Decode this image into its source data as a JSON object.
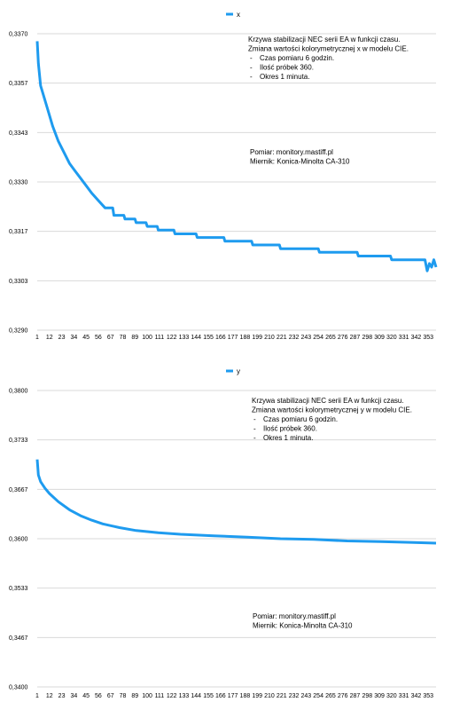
{
  "chart_data": [
    {
      "type": "line",
      "series": [
        {
          "name": "x",
          "color": "#1e9bef"
        }
      ],
      "ylim": [
        0.329,
        0.337
      ],
      "yticks": [
        "0,3370",
        "0,3357",
        "0,3343",
        "0,3330",
        "0,3317",
        "0,3303",
        "0,3290"
      ],
      "xticks": [
        "1",
        "12",
        "23",
        "34",
        "45",
        "56",
        "67",
        "78",
        "89",
        "100",
        "111",
        "122",
        "133",
        "144",
        "155",
        "166",
        "177",
        "188",
        "199",
        "210",
        "221",
        "232",
        "243",
        "254",
        "265",
        "276",
        "287",
        "298",
        "309",
        "320",
        "331",
        "342",
        "353"
      ],
      "xlim": [
        1,
        360
      ],
      "points": [
        [
          1,
          0.3368
        ],
        [
          2,
          0.3362
        ],
        [
          4,
          0.3356
        ],
        [
          6,
          0.3354
        ],
        [
          10,
          0.335
        ],
        [
          15,
          0.3345
        ],
        [
          20,
          0.3341
        ],
        [
          25,
          0.3338
        ],
        [
          30,
          0.3335
        ],
        [
          35,
          0.3333
        ],
        [
          40,
          0.3331
        ],
        [
          45,
          0.3329
        ],
        [
          50,
          0.3327
        ],
        [
          56,
          0.3325
        ],
        [
          62,
          0.3323
        ],
        [
          70,
          0.3321
        ],
        [
          80,
          0.332
        ],
        [
          90,
          0.3319
        ],
        [
          100,
          0.3318
        ],
        [
          110,
          0.3317
        ],
        [
          125,
          0.3316
        ],
        [
          145,
          0.3315
        ],
        [
          170,
          0.3314
        ],
        [
          195,
          0.3313
        ],
        [
          220,
          0.3312
        ],
        [
          255,
          0.3311
        ],
        [
          290,
          0.331
        ],
        [
          320,
          0.3309
        ],
        [
          350,
          0.3309
        ],
        [
          352,
          0.3306
        ],
        [
          354,
          0.3308
        ],
        [
          356,
          0.3307
        ],
        [
          358,
          0.3309
        ],
        [
          360,
          0.3307
        ]
      ],
      "annotation": {
        "lines": [
          "Krzywa stabilizacji NEC serii EA w funkcji czasu.",
          "Zmiana wartości kolorymetrycznej x w modelu CIE."
        ],
        "bullets": [
          "Czas pomiaru 6 godzin.",
          "Ilość próbek 360.",
          "Okres 1 minuta."
        ]
      },
      "source": [
        "Pomiar: monitory.mastiff.pl",
        "Miernik: Konica-Minolta CA-310"
      ]
    },
    {
      "type": "line",
      "series": [
        {
          "name": "y",
          "color": "#1e9bef"
        }
      ],
      "ylim": [
        0.34,
        0.38
      ],
      "yticks": [
        "0,3800",
        "0,3733",
        "0,3667",
        "0,3600",
        "0,3533",
        "0,3467",
        "0,3400"
      ],
      "xticks": [
        "1",
        "12",
        "23",
        "34",
        "45",
        "56",
        "67",
        "78",
        "89",
        "100",
        "111",
        "122",
        "133",
        "144",
        "155",
        "166",
        "177",
        "188",
        "199",
        "210",
        "221",
        "232",
        "243",
        "254",
        "265",
        "276",
        "287",
        "298",
        "309",
        "320",
        "331",
        "342",
        "353"
      ],
      "xlim": [
        1,
        360
      ],
      "points": [
        [
          1,
          0.3707
        ],
        [
          2,
          0.3686
        ],
        [
          4,
          0.3677
        ],
        [
          8,
          0.3668
        ],
        [
          12,
          0.3661
        ],
        [
          20,
          0.365
        ],
        [
          30,
          0.3639
        ],
        [
          40,
          0.3631
        ],
        [
          50,
          0.3625
        ],
        [
          60,
          0.362
        ],
        [
          75,
          0.3615
        ],
        [
          90,
          0.3611
        ],
        [
          110,
          0.3608
        ],
        [
          130,
          0.3606
        ],
        [
          160,
          0.3604
        ],
        [
          190,
          0.3602
        ],
        [
          220,
          0.36
        ],
        [
          250,
          0.3599
        ],
        [
          280,
          0.3597
        ],
        [
          310,
          0.3596
        ],
        [
          340,
          0.3595
        ],
        [
          360,
          0.3594
        ]
      ],
      "annotation": {
        "lines": [
          "Krzywa stabilizacji NEC serii EA w funkcji czasu.",
          "Zmiana wartości kolorymetrycznej y w modelu CIE."
        ],
        "bullets": [
          "Czas pomiaru 6 godzin.",
          "Ilość próbek 360.",
          "Okres 1 minuta."
        ]
      },
      "source": [
        "Pomiar: monitory.mastiff.pl",
        "Miernik: Konica-Minolta CA-310"
      ]
    }
  ]
}
